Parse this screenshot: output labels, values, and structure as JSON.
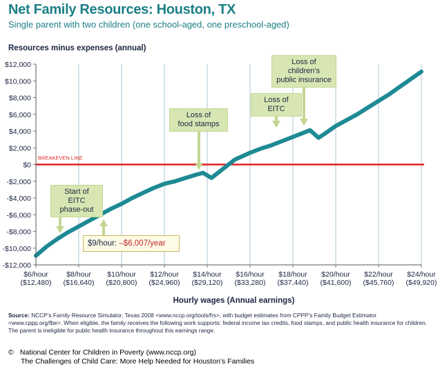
{
  "header": {
    "title": "Net Family Resources: Houston, TX",
    "subtitle": "Single parent with two children (one school-aged, one preschool-aged)"
  },
  "chart_data": {
    "type": "line",
    "title": "Net Family Resources: Houston, TX",
    "subtitle": "Single parent with two children (one school-aged, one preschool-aged)",
    "ylabel": "Resources minus expenses (annual)",
    "xlabel": "Hourly wages (Annual earnings)",
    "ylim": [
      -12000,
      12000
    ],
    "xlim": [
      6,
      24
    ],
    "y_ticks": [
      12000,
      10000,
      8000,
      6000,
      4000,
      2000,
      0,
      -2000,
      -4000,
      -6000,
      -8000,
      -10000,
      -12000
    ],
    "y_tick_labels": [
      "$12,000",
      "$10,000",
      "$8,000",
      "$6,000",
      "$4,000",
      "$2,000",
      "$0",
      "-$2,000",
      "-$4,000",
      "-$6,000",
      "-$8,000",
      "-$10,000",
      "-$12,000"
    ],
    "x_ticks": [
      6,
      8,
      10,
      12,
      14,
      16,
      18,
      20,
      22,
      24
    ],
    "x_tick_labels": [
      {
        "wage": "$6/hour",
        "earnings": "($12,480)"
      },
      {
        "wage": "$8/hour",
        "earnings": "($16,640)"
      },
      {
        "wage": "$10/hour",
        "earnings": "($20,800)"
      },
      {
        "wage": "$12/hour",
        "earnings": "($24,960)"
      },
      {
        "wage": "$14/hour",
        "earnings": "($29,120)"
      },
      {
        "wage": "$16/hour",
        "earnings": "($33,280)"
      },
      {
        "wage": "$18/hour",
        "earnings": "($37,440)"
      },
      {
        "wage": "$20/hour",
        "earnings": "($41,600)"
      },
      {
        "wage": "$22/hour",
        "earnings": "($45,760)"
      },
      {
        "wage": "$24/hour",
        "earnings": "($49,920)"
      }
    ],
    "grid": "vertical",
    "series": [
      {
        "color": "#1e8a94",
        "x": [
          6.0,
          6.5,
          7.0,
          7.5,
          8.0,
          8.5,
          9.0,
          9.5,
          10.0,
          10.5,
          11.0,
          11.5,
          12.0,
          12.5,
          13.0,
          13.5,
          13.8,
          14.2,
          14.7,
          15.3,
          16.0,
          16.5,
          17.0,
          17.5,
          18.0,
          18.5,
          18.8,
          19.2,
          19.5,
          20.0,
          20.5,
          21.0,
          21.5,
          22.0,
          22.5,
          23.0,
          23.5,
          24.0
        ],
        "y": [
          -10900,
          -9800,
          -8900,
          -8100,
          -7400,
          -6700,
          -6007,
          -5300,
          -4700,
          -4000,
          -3400,
          -2800,
          -2300,
          -2000,
          -1600,
          -1200,
          -1000,
          -1600,
          -600,
          600,
          1400,
          1900,
          2300,
          2800,
          3300,
          3800,
          4100,
          3200,
          3700,
          4600,
          5300,
          6000,
          6800,
          7600,
          8400,
          9300,
          10200,
          11100
        ]
      }
    ],
    "reference_line": {
      "y": 0,
      "label": "BREAKEVEN LINE",
      "color": "#e02020"
    },
    "annotations": [
      {
        "lines": [
          "Start of EITC",
          "phase-out"
        ],
        "x": 8.0
      },
      {
        "lines": [
          "Loss of",
          "food stamps"
        ],
        "x": 14.0
      },
      {
        "lines": [
          "Loss of EITC"
        ],
        "x": 18.5
      },
      {
        "lines": [
          "Loss of children’s",
          "public insurance"
        ],
        "x": 18.8
      }
    ],
    "highlight": {
      "wage": "$9/hour:",
      "value": "–$6,007/year",
      "x": 9,
      "y": -6007
    }
  },
  "notes": {
    "source_label": "Source:",
    "source_text": " NCCP’s Family Resource Simulator, Texas 2008 <www.nccp.org/tools/frs>, with budget estimates from CPPP’s Family Budget Estimator <www.cppp.org/fbe>. When eligible, the family receives the following work supports: federal income tax credits, food stamps, and public health insurance for children. The parent is ineligible for public health insurance throughout this earnings range."
  },
  "footer": {
    "copyright_symbol": "©",
    "line1": "National Center for Children in Poverty (www.nccp.org)",
    "line2": "The Challenges of Child Care: More Help Needed for Houston’s Families"
  }
}
